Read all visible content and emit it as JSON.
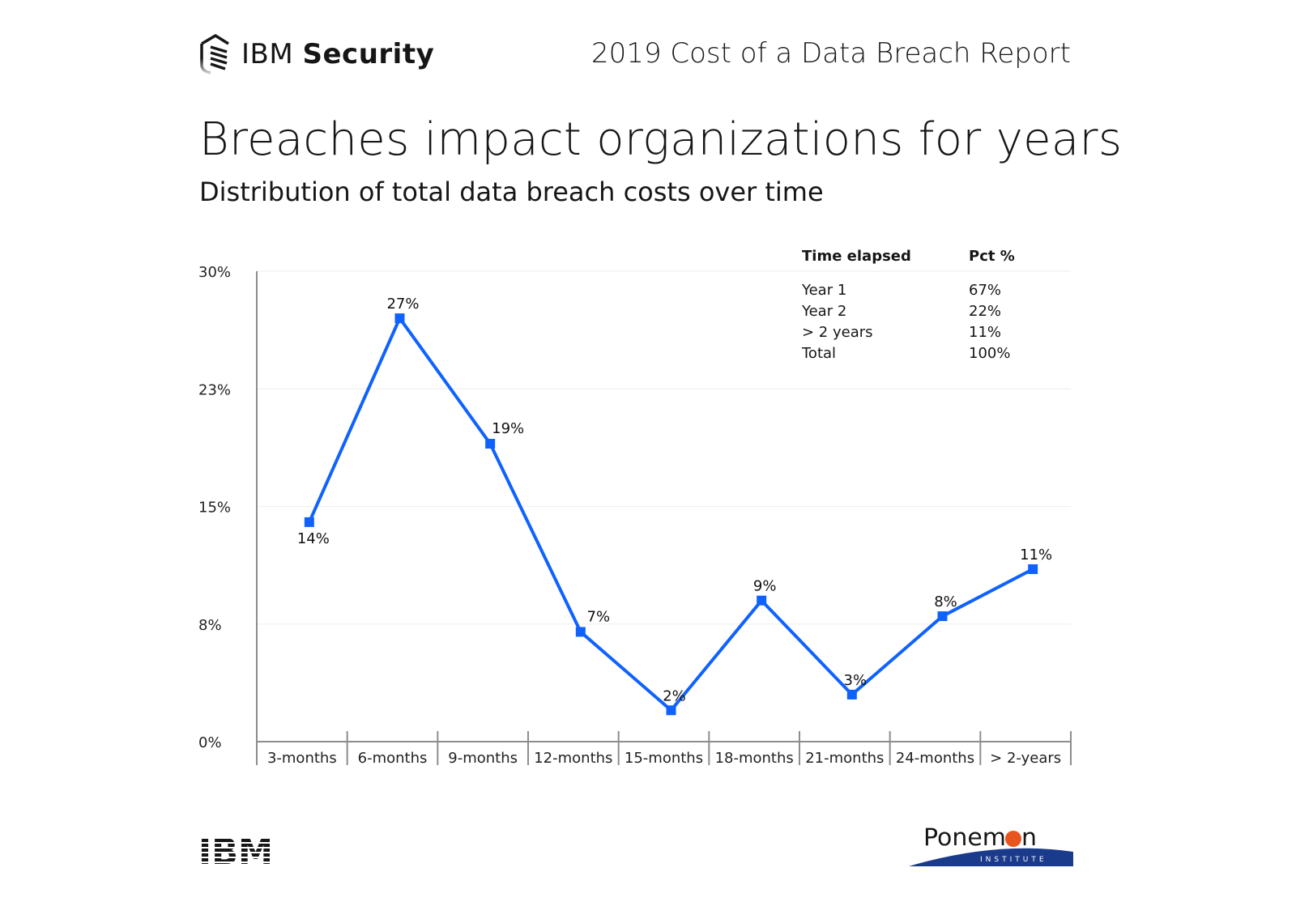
{
  "header": {
    "brand": "IBM",
    "brand_bold": "Security",
    "report_title": "2019 Cost of a Data Breach Report"
  },
  "title": "Breaches impact organizations for years",
  "subtitle": "Distribution of total data breach costs over time",
  "summary_table": {
    "headers": [
      "Time elapsed",
      "Pct %"
    ],
    "rows": [
      [
        "Year 1",
        "67%"
      ],
      [
        "Year 2",
        "22%"
      ],
      [
        "> 2 years",
        "11%"
      ],
      [
        "Total",
        "100%"
      ]
    ]
  },
  "chart_data": {
    "type": "line",
    "categories": [
      "3-months",
      "6-months",
      "9-months",
      "12-months",
      "15-months",
      "18-months",
      "21-months",
      "24-months",
      "> 2-years"
    ],
    "values": [
      14,
      27,
      19,
      7,
      2,
      9,
      3,
      8,
      11
    ],
    "data_labels": [
      "14%",
      "27%",
      "19%",
      "7%",
      "2%",
      "9%",
      "3%",
      "8%",
      "11%"
    ],
    "ylim": [
      0,
      30
    ],
    "yticks": [
      0,
      7.5,
      15,
      22.5,
      30
    ],
    "ytick_labels": [
      "0%",
      "8%",
      "15%",
      "23%",
      "30%"
    ],
    "grid": true,
    "marker": "square",
    "color": "#0f62fe"
  },
  "footer": {
    "left_logo": "IBM",
    "right_logo": "Ponemon",
    "right_logo_sub": "INSTITUTE",
    "ponemon_orange": "#e8561f",
    "ponemon_blue": "#1a3a8c"
  }
}
